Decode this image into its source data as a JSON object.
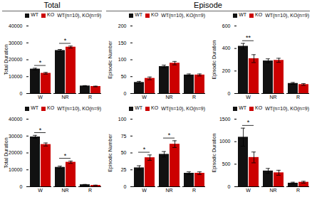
{
  "chart_data": [
    {
      "type": "bar",
      "title": "Total",
      "ylabel": "Total Duration",
      "categories": [
        "W",
        "NR",
        "R"
      ],
      "series": [
        {
          "name": "WT",
          "color": "#111111",
          "values": [
            14500,
            25500,
            4500
          ],
          "errors": [
            500,
            600,
            200
          ]
        },
        {
          "name": "KO",
          "color": "#cc0000",
          "values": [
            12000,
            27500,
            4200
          ],
          "errors": [
            500,
            600,
            200
          ]
        }
      ],
      "ylim": [
        0,
        40000
      ],
      "yticks": [
        0,
        10000,
        20000,
        30000,
        40000
      ],
      "legend": "upper right",
      "annotations": [
        {
          "text": "WT(n=10), KO(n=9)"
        }
      ],
      "significance": [
        {
          "category": "W",
          "label": "*"
        },
        {
          "category": "NR",
          "label": "*"
        }
      ]
    },
    {
      "type": "bar",
      "title": "Episode",
      "ylabel": "Episodic Number",
      "categories": [
        "W",
        "NR",
        "R"
      ],
      "series": [
        {
          "name": "WT",
          "color": "#111111",
          "values": [
            33,
            80,
            55
          ],
          "errors": [
            3,
            4,
            3
          ]
        },
        {
          "name": "KO",
          "color": "#cc0000",
          "values": [
            45,
            90,
            55
          ],
          "errors": [
            4,
            5,
            3
          ]
        }
      ],
      "ylim": [
        0,
        200
      ],
      "yticks": [
        0,
        50,
        100,
        150,
        200
      ],
      "legend": "upper right",
      "annotations": [
        {
          "text": "WT(n=10), KO(n=9)"
        }
      ],
      "significance": []
    },
    {
      "type": "bar",
      "ylabel": "Episodic Duration",
      "categories": [
        "W",
        "NR",
        "R"
      ],
      "series": [
        {
          "name": "WT",
          "color": "#111111",
          "values": [
            420,
            290,
            90
          ],
          "errors": [
            25,
            18,
            8
          ]
        },
        {
          "name": "KO",
          "color": "#cc0000",
          "values": [
            310,
            295,
            80
          ],
          "errors": [
            35,
            18,
            8
          ]
        }
      ],
      "ylim": [
        0,
        600
      ],
      "yticks": [
        0,
        200,
        400,
        600
      ],
      "legend": "upper right",
      "annotations": [
        {
          "text": "WT(n=10), KO(n=9)"
        }
      ],
      "significance": [
        {
          "category": "W",
          "label": "**"
        }
      ]
    },
    {
      "type": "bar",
      "ylabel": "Total Duration",
      "categories": [
        "W",
        "NR",
        "R"
      ],
      "series": [
        {
          "name": "WT",
          "color": "#111111",
          "values": [
            29500,
            11500,
            1200
          ],
          "errors": [
            900,
            700,
            150
          ]
        },
        {
          "name": "KO",
          "color": "#cc0000",
          "values": [
            25000,
            14500,
            800
          ],
          "errors": [
            900,
            700,
            150
          ]
        }
      ],
      "ylim": [
        0,
        40000
      ],
      "yticks": [
        0,
        10000,
        20000,
        30000,
        40000
      ],
      "legend": "upper right",
      "annotations": [
        {
          "text": "WT(n=10), KO(n=9)"
        }
      ],
      "significance": [
        {
          "category": "W",
          "label": "*"
        },
        {
          "category": "NR",
          "label": "*"
        }
      ]
    },
    {
      "type": "bar",
      "ylabel": "Episodic Number",
      "categories": [
        "W",
        "NR",
        "R"
      ],
      "series": [
        {
          "name": "WT",
          "color": "#111111",
          "values": [
            28,
            48,
            20
          ],
          "errors": [
            3,
            4,
            2
          ]
        },
        {
          "name": "KO",
          "color": "#cc0000",
          "values": [
            43,
            63,
            20
          ],
          "errors": [
            4,
            5,
            2
          ]
        }
      ],
      "ylim": [
        0,
        100
      ],
      "yticks": [
        0,
        25,
        50,
        75,
        100
      ],
      "legend": "upper right",
      "annotations": [
        {
          "text": "WT(n=10), KO(n=9)"
        }
      ],
      "significance": [
        {
          "category": "W",
          "label": "*"
        },
        {
          "category": "NR",
          "label": "*"
        }
      ]
    },
    {
      "type": "bar",
      "ylabel": "Episodic Duration",
      "categories": [
        "W",
        "NR",
        "R"
      ],
      "series": [
        {
          "name": "WT",
          "color": "#111111",
          "values": [
            1100,
            350,
            80
          ],
          "errors": [
            200,
            55,
            20
          ]
        },
        {
          "name": "KO",
          "color": "#cc0000",
          "values": [
            650,
            310,
            100
          ],
          "errors": [
            120,
            55,
            20
          ]
        }
      ],
      "ylim": [
        0,
        1500
      ],
      "yticks": [
        0,
        500,
        1000,
        1500
      ],
      "legend": "upper right",
      "annotations": [
        {
          "text": "WT(n=10), KO(n=9)"
        }
      ],
      "significance": [
        {
          "category": "W",
          "label": "*"
        }
      ]
    }
  ]
}
